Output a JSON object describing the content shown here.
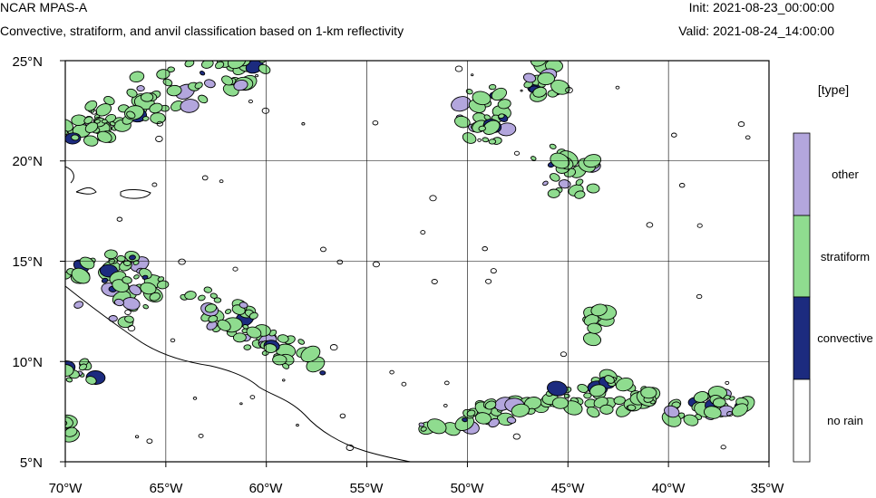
{
  "header": {
    "title": "NCAR MPAS-A",
    "subtitle": "Convective, stratiform, and anvil classification based on 1-km reflectivity",
    "init": "Init: 2021-08-23_00:00:00",
    "valid": "Valid: 2021-08-24_14:00:00"
  },
  "map": {
    "lon_range": [
      -70,
      -35
    ],
    "lat_range": [
      5,
      25
    ],
    "lon_ticks": [
      -70,
      -65,
      -60,
      -55,
      -50,
      -45,
      -40,
      -35
    ],
    "lat_ticks": [
      5,
      10,
      15,
      20,
      25
    ],
    "lon_labels": [
      "70°W",
      "65°W",
      "60°W",
      "55°W",
      "50°W",
      "45°W",
      "40°W",
      "35°W"
    ],
    "lat_labels": [
      "5°N",
      "10°N",
      "15°N",
      "20°N",
      "25°N"
    ],
    "grid": true
  },
  "legend": {
    "title": "[type]",
    "items": [
      {
        "label": "other",
        "color": "#b3a6dd"
      },
      {
        "label": "stratiform",
        "color": "#8fdc8f"
      },
      {
        "label": "convective",
        "color": "#1c2b7f"
      },
      {
        "label": "no rain",
        "color": "#ffffff"
      }
    ]
  },
  "colors": {
    "other": "#b3a6dd",
    "stratiform": "#8fdc8f",
    "convective": "#1c2b7f",
    "no_rain": "#ffffff",
    "coast": "#000000",
    "grid": "#000000"
  }
}
